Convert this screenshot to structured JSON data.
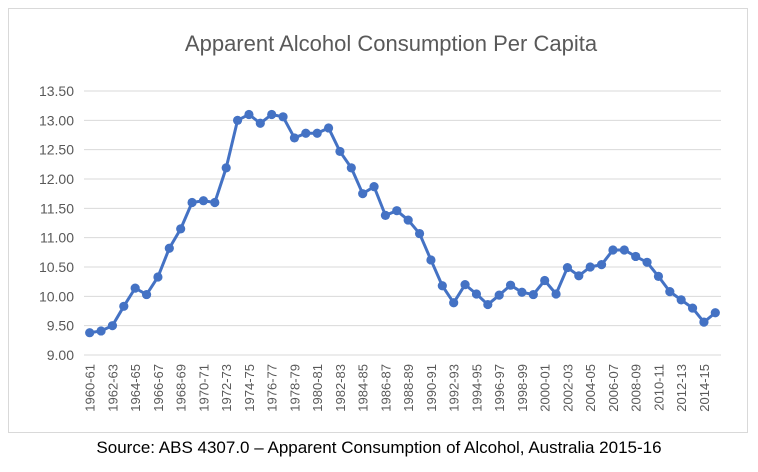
{
  "source": "Source: ABS 4307.0 – Apparent Consumption of Alcohol, Australia 2015-16",
  "colors": {
    "line": "#4472C4",
    "grid": "#d9d9d9",
    "text": "#595959"
  },
  "chart_data": {
    "type": "line",
    "title": "Apparent Alcohol  Consumption  Per Capita",
    "xlabel": "",
    "ylabel": "",
    "ylim": [
      9.0,
      13.5
    ],
    "yticks": [
      "9.00",
      "9.50",
      "10.00",
      "10.50",
      "11.00",
      "11.50",
      "12.00",
      "12.50",
      "13.00",
      "13.50"
    ],
    "grid": true,
    "legend": "none",
    "categories": [
      "1960-61",
      "1961-62",
      "1962-63",
      "1963-64",
      "1964-65",
      "1965-66",
      "1966-67",
      "1967-68",
      "1968-69",
      "1969-70",
      "1970-71",
      "1971-72",
      "1972-73",
      "1973-74",
      "1974-75",
      "1975-76",
      "1976-77",
      "1977-78",
      "1978-79",
      "1979-80",
      "1980-81",
      "1981-82",
      "1982-83",
      "1983-84",
      "1984-85",
      "1985-86",
      "1986-87",
      "1987-88",
      "1988-89",
      "1989-90",
      "1990-91",
      "1991-92",
      "1992-93",
      "1993-94",
      "1994-95",
      "1995-96",
      "1996-97",
      "1997-98",
      "1998-99",
      "1999-00",
      "2000-01",
      "2001-02",
      "2002-03",
      "2003-04",
      "2004-05",
      "2005-06",
      "2006-07",
      "2007-08",
      "2008-09",
      "2009-10",
      "2010-11",
      "2011-12",
      "2012-13",
      "2013-14",
      "2014-15",
      "2015-16"
    ],
    "tick_labels": [
      "1960-61",
      "1962-63",
      "1964-65",
      "1966-67",
      "1968-69",
      "1970-71",
      "1972-73",
      "1974-75",
      "1976-77",
      "1978-79",
      "1980-81",
      "1982-83",
      "1984-85",
      "1986-87",
      "1988-89",
      "1990-91",
      "1992-93",
      "1994-95",
      "1996-97",
      "1998-99",
      "2000-01",
      "2002-03",
      "2004-05",
      "2006-07",
      "2008-09",
      "2010-11",
      "2012-13",
      "2014-15"
    ],
    "series": [
      {
        "name": "Apparent Alcohol Consumption Per Capita",
        "values": [
          9.38,
          9.41,
          9.5,
          9.83,
          10.14,
          10.03,
          10.33,
          10.82,
          11.15,
          11.6,
          11.63,
          11.6,
          12.19,
          13.0,
          13.1,
          12.95,
          13.1,
          13.06,
          12.7,
          12.78,
          12.78,
          12.87,
          12.47,
          12.19,
          11.75,
          11.87,
          11.38,
          11.46,
          11.3,
          11.07,
          10.62,
          10.18,
          9.89,
          10.2,
          10.04,
          9.86,
          10.02,
          10.19,
          10.07,
          10.03,
          10.27,
          10.04,
          10.49,
          10.35,
          10.5,
          10.54,
          10.79,
          10.79,
          10.68,
          10.58,
          10.34,
          10.08,
          9.94,
          9.8,
          9.56,
          9.72
        ]
      }
    ]
  }
}
